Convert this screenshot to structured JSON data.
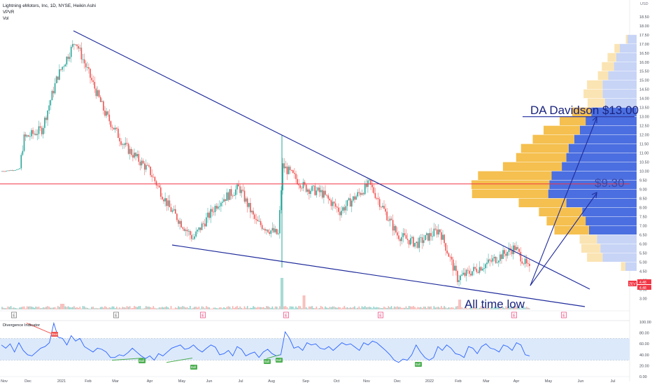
{
  "header": {
    "title": "Lightning eMotors, Inc, 1D, NYSE, Heikin Ashi",
    "line2": "VPVR",
    "line3": "Vol"
  },
  "colors": {
    "up": "#26a69a",
    "down": "#ef5350",
    "trend": "#1f2b9b",
    "hline": "#f23645",
    "vpvr_up": "#4b6fe0",
    "vpvr_down": "#f5c04f",
    "rsi": "#2962ff",
    "rsi_band": "#dce9fb"
  },
  "labels": {
    "target_high": "DA Davidson $13.00",
    "target_mid": "$9.30",
    "atl": "All time low",
    "currency": "USD",
    "symbol_badge": "ZEV",
    "price_badge_1": "4.48",
    "price_badge_2": "4.48"
  },
  "osc": {
    "title": "Divergence Indicator",
    "axis_ticks": [
      "100.00",
      "80.00",
      "60.00",
      "40.00",
      "20.00",
      "0.00"
    ],
    "bear_label": "Bear",
    "bull_label": "Bull"
  },
  "chart_data": {
    "type": "candlestick",
    "price_axis": [
      "18.50",
      "18.00",
      "17.50",
      "17.00",
      "16.50",
      "16.00",
      "15.50",
      "15.00",
      "14.50",
      "14.00",
      "13.50",
      "13.00",
      "12.50",
      "12.00",
      "11.50",
      "11.00",
      "10.50",
      "10.00",
      "9.50",
      "9.00",
      "8.50",
      "8.00",
      "7.50",
      "7.00",
      "6.50",
      "6.00",
      "5.50",
      "5.00",
      "4.50",
      "4.00",
      "3.50",
      "3.00"
    ],
    "time_axis": [
      "Nov",
      "Dec",
      "2021",
      "Feb",
      "Mar",
      "Apr",
      "May",
      "Jun",
      "Jul",
      "Aug",
      "Sep",
      "Oct",
      "Nov",
      "Dec",
      "2022",
      "Feb",
      "Mar",
      "Apr",
      "May",
      "Jun",
      "Jul"
    ],
    "event_markers": [
      "E",
      "E",
      "E",
      "E",
      "E",
      "E",
      "E"
    ],
    "price_path": [
      [
        "Nov",
        10.0
      ],
      [
        "Dec",
        10.1
      ],
      [
        "Dec",
        11.8
      ],
      [
        "2021",
        12.3
      ],
      [
        "2021",
        15.2
      ],
      [
        "Feb",
        17.2
      ],
      [
        "Feb",
        16.2
      ],
      [
        "Mar",
        13.2
      ],
      [
        "Mar",
        11.4
      ],
      [
        "Apr",
        10.0
      ],
      [
        "Apr",
        8.0
      ],
      [
        "May",
        6.3
      ],
      [
        "Jun",
        8.3
      ],
      [
        "Jul",
        9.1
      ],
      [
        "Jul",
        7.2
      ],
      [
        "Aug",
        6.5
      ],
      [
        "Aug",
        10.3
      ],
      [
        "Sep",
        9.1
      ],
      [
        "Oct",
        8.8
      ],
      [
        "Oct",
        7.8
      ],
      [
        "Nov",
        9.3
      ],
      [
        "Nov",
        8.5
      ],
      [
        "Dec",
        6.5
      ],
      [
        "Dec",
        6.0
      ],
      [
        "2022",
        6.8
      ],
      [
        "Feb",
        4.1
      ],
      [
        "Mar",
        5.0
      ],
      [
        "Apr",
        5.8
      ],
      [
        "Apr",
        4.48
      ]
    ],
    "horizontal_line": 9.3,
    "trendlines": [
      {
        "from": [
          "Feb",
          17.5
        ],
        "to": [
          "May",
          5.0
        ]
      },
      {
        "from": [
          "May",
          6.5
        ],
        "to": [
          "Jun",
          3.2
        ]
      }
    ],
    "target_lines": [
      {
        "label": "DA Davidson $13.00",
        "value": 13.0
      },
      {
        "label": "$9.30",
        "value": 9.3
      }
    ],
    "last_price": 4.48,
    "volume_profile": [
      {
        "price": 17.0,
        "up": 0.08,
        "down": 0.02
      },
      {
        "price": 16.5,
        "up": 0.15,
        "down": 0.06
      },
      {
        "price": 16.0,
        "up": 0.18,
        "down": 0.1
      },
      {
        "price": 15.5,
        "up": 0.2,
        "down": 0.14
      },
      {
        "price": 15.0,
        "up": 0.25,
        "down": 0.12
      },
      {
        "price": 14.5,
        "up": 0.3,
        "down": 0.18
      },
      {
        "price": 14.0,
        "up": 0.3,
        "down": 0.22
      },
      {
        "price": 13.5,
        "up": 0.28,
        "down": 0.2
      },
      {
        "price": 13.0,
        "up": 0.4,
        "down": 0.22
      },
      {
        "price": 12.5,
        "up": 0.45,
        "down": 0.3
      },
      {
        "price": 12.0,
        "up": 0.5,
        "down": 0.42
      },
      {
        "price": 11.5,
        "up": 0.55,
        "down": 0.48
      },
      {
        "price": 11.0,
        "up": 0.6,
        "down": 0.55
      },
      {
        "price": 10.5,
        "up": 0.62,
        "down": 0.58
      },
      {
        "price": 10.0,
        "up": 0.66,
        "down": 0.68
      },
      {
        "price": 9.5,
        "up": 0.75,
        "down": 0.85
      },
      {
        "price": 9.0,
        "up": 0.77,
        "down": 0.9
      },
      {
        "price": 8.5,
        "up": 0.78,
        "down": 0.88
      },
      {
        "price": 8.0,
        "up": 0.62,
        "down": 0.55
      },
      {
        "price": 7.5,
        "up": 0.48,
        "down": 0.5
      },
      {
        "price": 7.0,
        "up": 0.45,
        "down": 0.45
      },
      {
        "price": 6.5,
        "up": 0.42,
        "down": 0.4
      },
      {
        "price": 6.0,
        "up": 0.35,
        "down": 0.2
      },
      {
        "price": 5.5,
        "up": 0.32,
        "down": 0.22
      },
      {
        "price": 5.0,
        "up": 0.3,
        "down": 0.18
      },
      {
        "price": 4.5,
        "up": 0.1,
        "down": 0.05
      }
    ],
    "oscillator": {
      "name": "Divergence Indicator",
      "ylim": [
        0,
        100
      ],
      "band": [
        30,
        70
      ],
      "points": [
        [
          0,
          58
        ],
        [
          3,
          52
        ],
        [
          6,
          60
        ],
        [
          9,
          45
        ],
        [
          12,
          62
        ],
        [
          15,
          48
        ],
        [
          18,
          40
        ],
        [
          21,
          38
        ],
        [
          24,
          45
        ],
        [
          27,
          52
        ],
        [
          30,
          55
        ],
        [
          33,
          62
        ],
        [
          36,
          98
        ],
        [
          39,
          72
        ],
        [
          42,
          70
        ],
        [
          45,
          58
        ],
        [
          48,
          75
        ],
        [
          51,
          65
        ],
        [
          54,
          70
        ],
        [
          57,
          55
        ],
        [
          60,
          50
        ],
        [
          63,
          45
        ],
        [
          66,
          52
        ],
        [
          69,
          50
        ],
        [
          72,
          45
        ],
        [
          75,
          35
        ],
        [
          78,
          35
        ],
        [
          81,
          40
        ],
        [
          84,
          38
        ],
        [
          87,
          44
        ],
        [
          90,
          52
        ],
        [
          93,
          45
        ],
        [
          96,
          38
        ],
        [
          99,
          33
        ],
        [
          102,
          38
        ],
        [
          105,
          30
        ],
        [
          108,
          42
        ],
        [
          111,
          38
        ],
        [
          114,
          45
        ],
        [
          117,
          52
        ],
        [
          120,
          55
        ],
        [
          123,
          58
        ],
        [
          126,
          50
        ],
        [
          129,
          52
        ],
        [
          132,
          58
        ],
        [
          135,
          50
        ],
        [
          138,
          45
        ],
        [
          141,
          52
        ],
        [
          144,
          58
        ],
        [
          147,
          54
        ],
        [
          150,
          40
        ],
        [
          153,
          42
        ],
        [
          156,
          48
        ],
        [
          159,
          38
        ],
        [
          162,
          55
        ],
        [
          165,
          50
        ],
        [
          168,
          38
        ],
        [
          171,
          42
        ],
        [
          174,
          45
        ],
        [
          177,
          35
        ],
        [
          180,
          45
        ],
        [
          183,
          50
        ],
        [
          186,
          42
        ],
        [
          189,
          38
        ],
        [
          192,
          40
        ],
        [
          195,
          82
        ],
        [
          198,
          70
        ],
        [
          201,
          52
        ],
        [
          204,
          55
        ],
        [
          207,
          48
        ],
        [
          210,
          62
        ],
        [
          213,
          58
        ],
        [
          216,
          60
        ],
        [
          219,
          52
        ],
        [
          222,
          50
        ],
        [
          225,
          55
        ],
        [
          228,
          48
        ],
        [
          231,
          55
        ],
        [
          234,
          62
        ],
        [
          237,
          58
        ],
        [
          240,
          60
        ],
        [
          243,
          54
        ],
        [
          246,
          48
        ],
        [
          249,
          62
        ],
        [
          252,
          58
        ],
        [
          255,
          65
        ],
        [
          258,
          62
        ],
        [
          261,
          55
        ],
        [
          264,
          48
        ],
        [
          267,
          40
        ],
        [
          270,
          30
        ],
        [
          273,
          26
        ],
        [
          276,
          32
        ],
        [
          279,
          30
        ],
        [
          282,
          40
        ],
        [
          285,
          58
        ],
        [
          288,
          45
        ],
        [
          291,
          35
        ],
        [
          294,
          30
        ],
        [
          297,
          35
        ],
        [
          300,
          55
        ],
        [
          303,
          48
        ],
        [
          306,
          58
        ],
        [
          309,
          52
        ],
        [
          312,
          42
        ],
        [
          315,
          40
        ],
        [
          318,
          35
        ],
        [
          321,
          55
        ],
        [
          324,
          52
        ],
        [
          327,
          42
        ],
        [
          330,
          55
        ],
        [
          333,
          60
        ],
        [
          336,
          52
        ],
        [
          339,
          50
        ],
        [
          342,
          45
        ],
        [
          345,
          58
        ],
        [
          348,
          55
        ],
        [
          351,
          48
        ],
        [
          354,
          62
        ],
        [
          357,
          58
        ],
        [
          360,
          40
        ],
        [
          363,
          38
        ]
      ]
    },
    "divergence_signals": [
      {
        "kind": "Bear",
        "at": "Jan 2021"
      },
      {
        "kind": "Bull",
        "at": "Mar 2021"
      },
      {
        "kind": "Bull",
        "at": "May 2021"
      },
      {
        "kind": "Bull",
        "at": "Aug 2021"
      },
      {
        "kind": "Bull",
        "at": "Aug 2021"
      },
      {
        "kind": "Bull",
        "at": "Jan 2022"
      }
    ]
  }
}
